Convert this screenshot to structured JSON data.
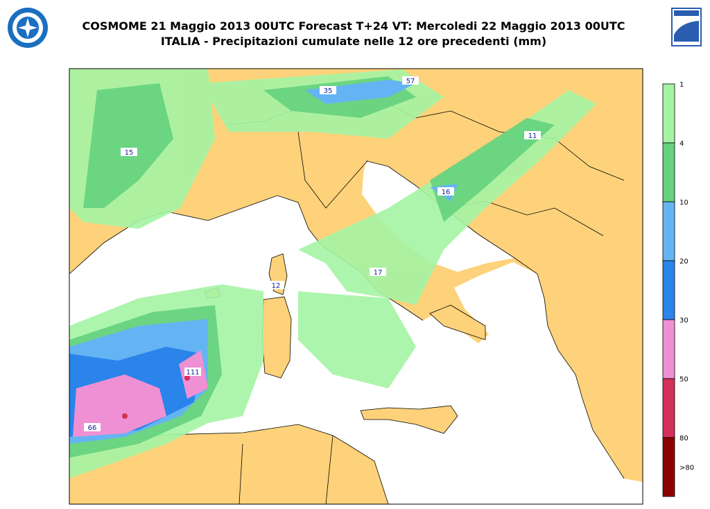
{
  "header": {
    "title_line1": "COSMOME 21 Maggio 2013 00UTC Forecast T+24 VT: Mercoledi 22 Maggio 2013 00UTC",
    "title_line2": "ITALIA - Precipitazioni cumulate nelle 12 ore precedenti (mm)"
  },
  "map": {
    "max_labels": [
      57,
      35,
      15,
      11,
      16,
      17,
      12,
      111,
      66
    ]
  },
  "colorbar": {
    "labels": [
      1,
      4,
      10,
      20,
      30,
      50,
      80,
      ">80"
    ],
    "colors": [
      "#a4f4a4",
      "#64d27e",
      "#64b4f4",
      "#2a84ea",
      "#f090d4",
      "#d4305c",
      "#8c0000"
    ]
  }
}
